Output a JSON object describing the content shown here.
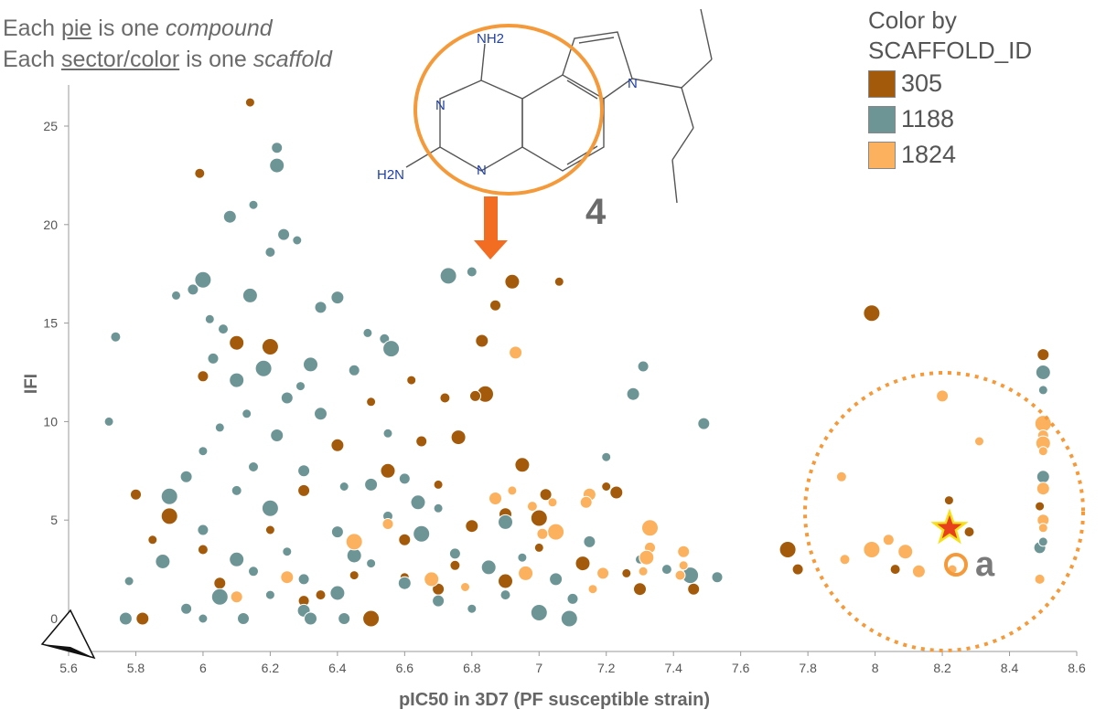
{
  "captions": {
    "line1": {
      "pre": "Each ",
      "u": "pie",
      "mid": " is one ",
      "i": "compound"
    },
    "line2": {
      "pre": "Each ",
      "u": "sector/color",
      "mid": " is one ",
      "i": "scaffold"
    }
  },
  "legend": {
    "title_line1": "Color by",
    "title_line2": "SCAFFOLD_ID",
    "items": [
      {
        "label": "305",
        "color": "#a35a0a"
      },
      {
        "label": "1188",
        "color": "#6e9595"
      },
      {
        "label": "1824",
        "color": "#fbb15d"
      }
    ]
  },
  "annotations": {
    "compound_number": "4",
    "point_label": "a",
    "structure_labels": [
      "NH2",
      "N",
      "N",
      "N",
      "H2N"
    ],
    "arrow_color": "#f26c22",
    "highlight_color": "#f59a3a",
    "star_color": "#e8401c"
  },
  "chart_data": {
    "type": "scatter",
    "title": "",
    "xlabel": "pIC50 in 3D7 (PF susceptible strain)",
    "ylabel": "IFI",
    "xlim": [
      5.6,
      8.6
    ],
    "ylim": [
      0,
      26
    ],
    "xticks": [
      "5.6",
      "5.8",
      "6",
      "6.2",
      "6.4",
      "6.6",
      "6.8",
      "7",
      "7.2",
      "7.4",
      "7.6",
      "7.8",
      "8",
      "8.2",
      "8.4",
      "8.6"
    ],
    "yticks": [
      "0",
      "5",
      "10",
      "15",
      "20",
      "25"
    ],
    "grid": false,
    "legend_placement": "top-right",
    "series": [
      {
        "name": "305",
        "color": "#a35a0a",
        "points": [
          [
            6.14,
            26.2
          ],
          [
            5.99,
            22.6
          ],
          [
            7.99,
            15.5
          ],
          [
            6.87,
            15.9
          ],
          [
            6.92,
            17.1
          ],
          [
            7.06,
            17.1
          ],
          [
            6.83,
            14.1
          ],
          [
            8.5,
            13.4
          ],
          [
            6.62,
            12.1
          ],
          [
            6.72,
            11.2
          ],
          [
            6.84,
            11.4
          ],
          [
            6.81,
            11.3
          ],
          [
            6.76,
            9.2
          ],
          [
            7.2,
            6.7
          ],
          [
            7.23,
            6.4
          ],
          [
            7.02,
            6.3
          ],
          [
            8.22,
            6.0
          ],
          [
            8.28,
            4.4
          ],
          [
            7.74,
            3.5
          ],
          [
            7.77,
            2.5
          ],
          [
            7.13,
            2.8
          ],
          [
            7.26,
            2.3
          ],
          [
            7.3,
            1.5
          ],
          [
            7.46,
            1.5
          ],
          [
            8.49,
            5.7
          ],
          [
            8.06,
            2.5
          ],
          [
            6.2,
            13.8
          ],
          [
            6.0,
            12.3
          ],
          [
            6.1,
            14.0
          ],
          [
            6.5,
            11.0
          ],
          [
            6.4,
            8.8
          ],
          [
            6.3,
            6.5
          ],
          [
            6.2,
            4.5
          ],
          [
            6.0,
            3.5
          ],
          [
            5.9,
            5.2
          ],
          [
            5.8,
            6.3
          ],
          [
            6.55,
            7.5
          ],
          [
            6.7,
            6.8
          ],
          [
            6.9,
            5.3
          ],
          [
            6.6,
            4.0
          ],
          [
            6.45,
            2.2
          ],
          [
            6.35,
            1.2
          ],
          [
            6.5,
            0.0
          ],
          [
            6.3,
            0.9
          ],
          [
            6.9,
            1.9
          ],
          [
            7.0,
            3.6
          ],
          [
            6.8,
            4.7
          ],
          [
            6.7,
            1.5
          ],
          [
            6.6,
            2.1
          ],
          [
            6.75,
            2.7
          ],
          [
            7.0,
            5.1
          ],
          [
            6.65,
            9.0
          ],
          [
            6.95,
            7.8
          ],
          [
            5.85,
            4.0
          ],
          [
            5.82,
            0.0
          ],
          [
            6.05,
            1.8
          ]
        ]
      },
      {
        "name": "1188",
        "color": "#6e9595",
        "points": [
          [
            6.22,
            23.9
          ],
          [
            6.22,
            23.0
          ],
          [
            6.15,
            21.0
          ],
          [
            6.08,
            20.4
          ],
          [
            6.24,
            19.5
          ],
          [
            6.28,
            19.2
          ],
          [
            6.2,
            18.6
          ],
          [
            6.0,
            17.2
          ],
          [
            5.97,
            16.7
          ],
          [
            6.14,
            16.4
          ],
          [
            5.92,
            16.4
          ],
          [
            6.4,
            16.3
          ],
          [
            6.35,
            15.8
          ],
          [
            6.49,
            14.5
          ],
          [
            6.54,
            14.2
          ],
          [
            6.56,
            13.7
          ],
          [
            6.45,
            12.6
          ],
          [
            6.32,
            12.9
          ],
          [
            6.29,
            11.8
          ],
          [
            7.28,
            11.4
          ],
          [
            7.49,
            9.9
          ],
          [
            5.72,
            10.0
          ],
          [
            5.74,
            14.3
          ],
          [
            7.09,
            0.0
          ],
          [
            7.31,
            12.8
          ],
          [
            8.5,
            12.5
          ],
          [
            8.5,
            11.6
          ],
          [
            8.5,
            7.2
          ],
          [
            8.49,
            3.6
          ],
          [
            8.5,
            3.9
          ],
          [
            6.8,
            17.6
          ],
          [
            6.73,
            17.4
          ],
          [
            6.03,
            13.2
          ],
          [
            6.1,
            12.1
          ],
          [
            6.13,
            10.4
          ],
          [
            6.22,
            9.3
          ],
          [
            6.3,
            7.5
          ],
          [
            6.42,
            6.7
          ],
          [
            6.55,
            5.2
          ],
          [
            6.65,
            4.3
          ],
          [
            6.75,
            3.3
          ],
          [
            6.85,
            2.6
          ],
          [
            6.95,
            3.1
          ],
          [
            7.05,
            2.0
          ],
          [
            7.15,
            3.9
          ],
          [
            7.3,
            3.0
          ],
          [
            7.38,
            2.5
          ],
          [
            7.45,
            2.2
          ],
          [
            7.53,
            2.1
          ],
          [
            6.9,
            4.9
          ],
          [
            6.7,
            5.6
          ],
          [
            6.5,
            6.8
          ],
          [
            6.4,
            4.4
          ],
          [
            6.25,
            3.4
          ],
          [
            6.15,
            2.4
          ],
          [
            6.05,
            1.1
          ],
          [
            5.95,
            0.5
          ],
          [
            5.88,
            2.9
          ],
          [
            5.78,
            1.9
          ],
          [
            5.77,
            0.0
          ],
          [
            5.95,
            7.2
          ],
          [
            6.0,
            8.5
          ],
          [
            6.1,
            6.5
          ],
          [
            6.2,
            5.6
          ],
          [
            6.3,
            2.0
          ],
          [
            6.4,
            1.3
          ],
          [
            6.5,
            2.8
          ],
          [
            6.6,
            1.8
          ],
          [
            6.7,
            0.9
          ],
          [
            6.8,
            0.5
          ],
          [
            6.9,
            1.2
          ],
          [
            7.0,
            0.3
          ],
          [
            7.1,
            1.0
          ],
          [
            6.45,
            3.2
          ],
          [
            6.55,
            9.4
          ],
          [
            6.35,
            10.4
          ],
          [
            6.25,
            11.2
          ],
          [
            6.05,
            9.7
          ],
          [
            6.15,
            7.7
          ],
          [
            5.9,
            6.2
          ],
          [
            6.0,
            4.5
          ],
          [
            6.1,
            3.0
          ],
          [
            6.2,
            1.2
          ],
          [
            6.3,
            0.4
          ],
          [
            6.42,
            0.0
          ],
          [
            6.02,
            15.2
          ],
          [
            6.06,
            14.7
          ],
          [
            6.18,
            12.7
          ],
          [
            6.6,
            7.1
          ],
          [
            6.64,
            5.9
          ],
          [
            7.2,
            8.2
          ],
          [
            6.32,
            0.0
          ],
          [
            6.12,
            0.0
          ],
          [
            6.0,
            0.0
          ]
        ]
      },
      {
        "name": "1824",
        "color": "#fbb15d",
        "points": [
          [
            6.93,
            13.5
          ],
          [
            8.2,
            11.3
          ],
          [
            8.31,
            9.0
          ],
          [
            7.9,
            7.2
          ],
          [
            8.5,
            9.9
          ],
          [
            8.5,
            9.3
          ],
          [
            8.5,
            8.9
          ],
          [
            8.5,
            8.5
          ],
          [
            8.5,
            6.6
          ],
          [
            8.5,
            5.0
          ],
          [
            8.5,
            4.6
          ],
          [
            7.91,
            3.0
          ],
          [
            7.99,
            3.5
          ],
          [
            8.04,
            4.0
          ],
          [
            8.09,
            3.4
          ],
          [
            8.23,
            2.5
          ],
          [
            8.13,
            2.4
          ],
          [
            7.43,
            3.4
          ],
          [
            7.43,
            2.7
          ],
          [
            7.42,
            2.2
          ],
          [
            7.33,
            4.6
          ],
          [
            7.33,
            3.6
          ],
          [
            7.32,
            3.1
          ],
          [
            7.31,
            2.4
          ],
          [
            7.15,
            6.3
          ],
          [
            7.14,
            5.9
          ],
          [
            7.04,
            5.9
          ],
          [
            6.98,
            5.7
          ],
          [
            7.05,
            4.4
          ],
          [
            7.01,
            4.3
          ],
          [
            6.96,
            2.3
          ],
          [
            6.92,
            6.5
          ],
          [
            6.87,
            6.1
          ],
          [
            7.19,
            2.3
          ],
          [
            7.16,
            1.5
          ],
          [
            8.49,
            2.0
          ],
          [
            6.45,
            3.9
          ],
          [
            6.55,
            4.8
          ],
          [
            6.68,
            2.0
          ],
          [
            6.78,
            1.6
          ],
          [
            6.25,
            2.1
          ],
          [
            6.1,
            1.1
          ]
        ]
      }
    ]
  }
}
